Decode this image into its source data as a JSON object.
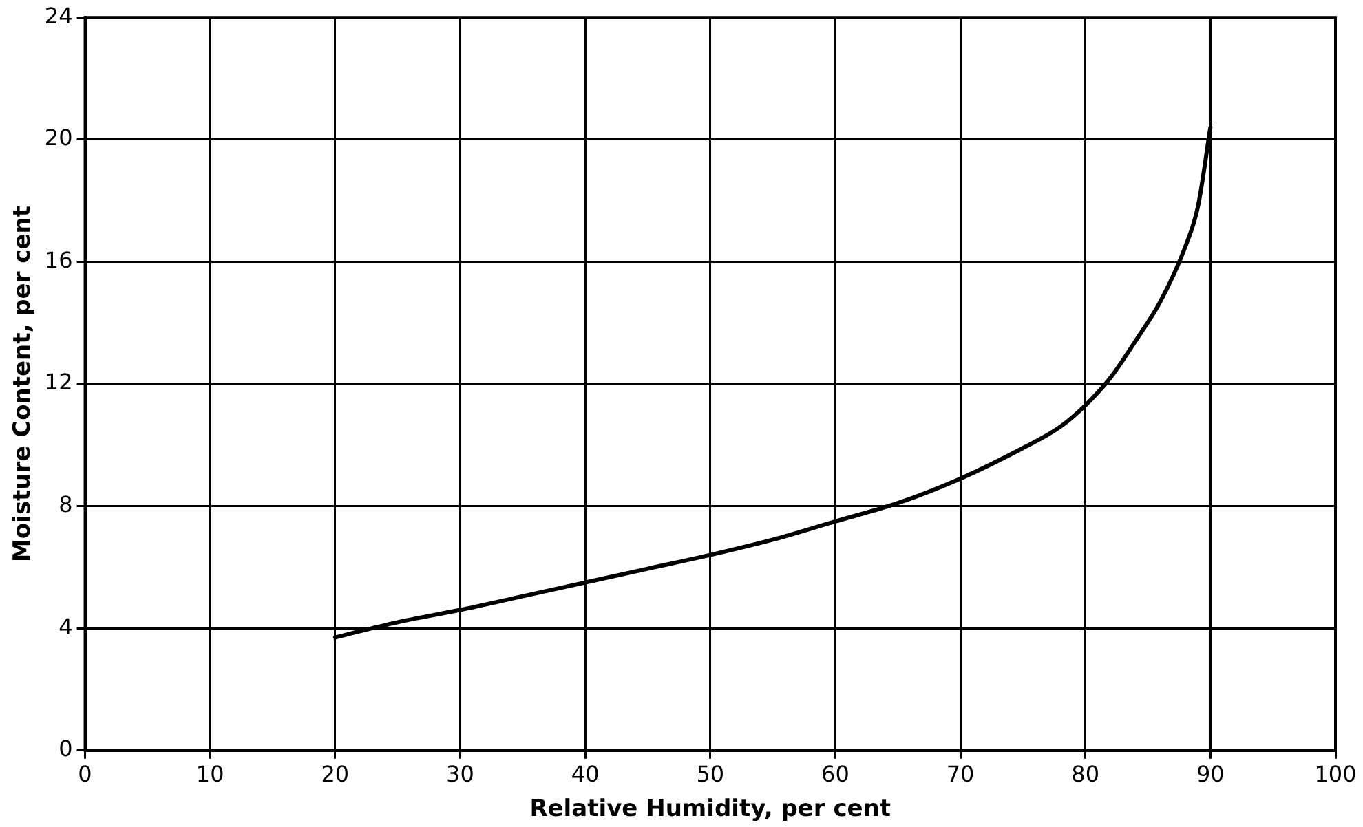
{
  "chart_data": {
    "type": "line",
    "xlabel": "Relative Humidity, per cent",
    "ylabel": "Moisture Content, per cent",
    "x": [
      20,
      25,
      30,
      35,
      40,
      45,
      50,
      55,
      60,
      65,
      70,
      75,
      78,
      80,
      82,
      84,
      86,
      88,
      89,
      90
    ],
    "series": [
      {
        "color": "#000000",
        "values": [
          3.7,
          4.2,
          4.6,
          5.05,
          5.5,
          5.95,
          6.4,
          6.9,
          7.5,
          8.1,
          8.9,
          9.9,
          10.6,
          11.3,
          12.2,
          13.4,
          14.7,
          16.5,
          17.8,
          20.4
        ]
      }
    ],
    "xlim": [
      0,
      100
    ],
    "xticks": [
      0,
      10,
      20,
      30,
      40,
      50,
      60,
      70,
      80,
      90,
      100
    ],
    "ylim": [
      0,
      24
    ],
    "yticks": [
      0,
      4,
      8,
      12,
      16,
      20,
      24
    ],
    "grid": true,
    "legend": false,
    "marker": "none",
    "line_style": "solid"
  }
}
